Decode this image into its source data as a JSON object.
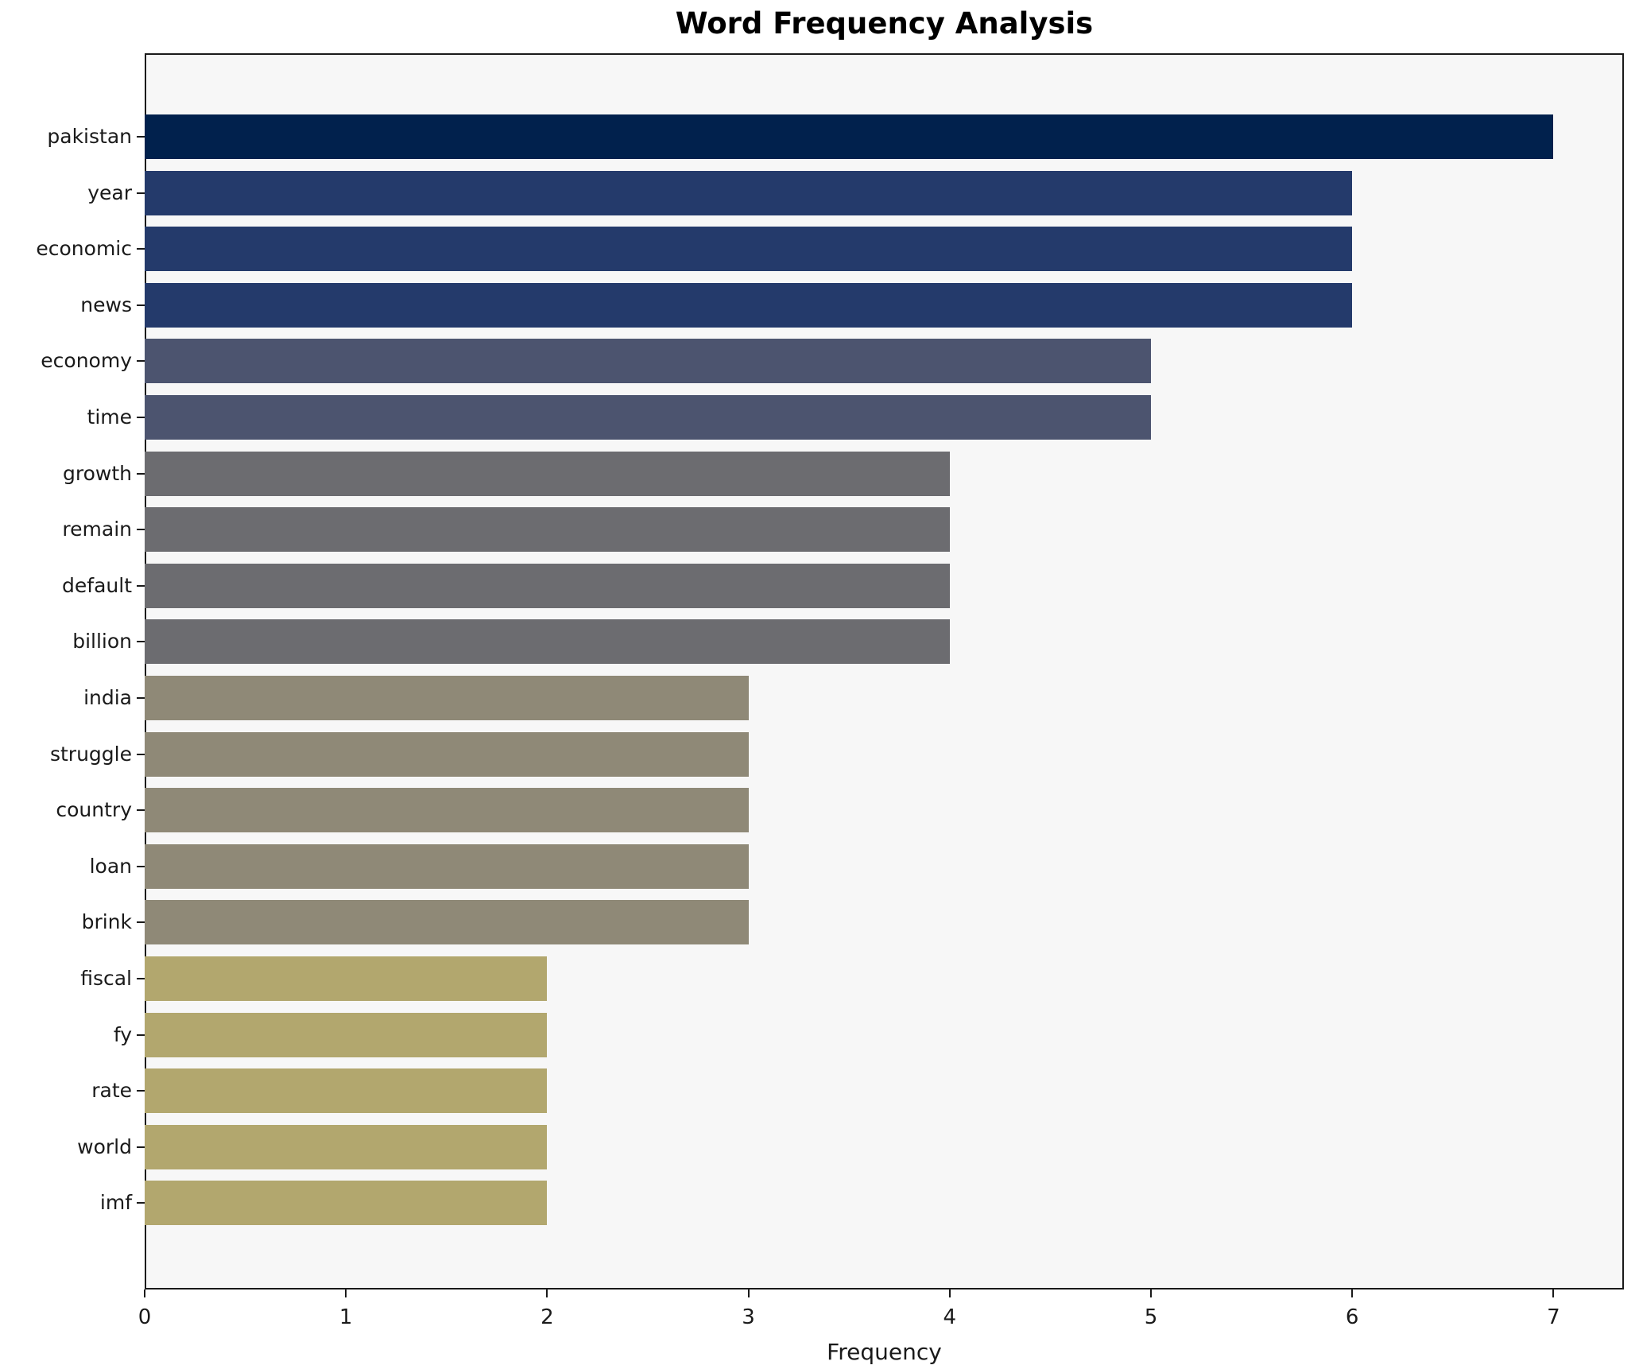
{
  "title": "Word Frequency Analysis",
  "xlabel": "Frequency",
  "colors": {
    "figure_bg": "#ffffff",
    "plot_bg": "#f7f7f7",
    "spine": "#1a1a1a",
    "text": "#1a1a1a"
  },
  "chart_data": {
    "type": "bar",
    "orientation": "horizontal",
    "title": "Word Frequency Analysis",
    "xlabel": "Frequency",
    "ylabel": "",
    "categories": [
      "pakistan",
      "year",
      "economic",
      "news",
      "economy",
      "time",
      "growth",
      "remain",
      "default",
      "billion",
      "india",
      "struggle",
      "country",
      "loan",
      "brink",
      "fiscal",
      "fy",
      "rate",
      "world",
      "imf"
    ],
    "values": [
      7,
      6,
      6,
      6,
      5,
      5,
      4,
      4,
      4,
      4,
      3,
      3,
      3,
      3,
      3,
      2,
      2,
      2,
      2,
      2
    ],
    "bar_colors": [
      "#01214D",
      "#243A6B",
      "#243A6B",
      "#243A6B",
      "#4C546F",
      "#4C546F",
      "#6C6C70",
      "#6C6C70",
      "#6C6C70",
      "#6C6C70",
      "#8F8977",
      "#8F8977",
      "#8F8977",
      "#8F8977",
      "#8F8977",
      "#B2A76E",
      "#B2A76E",
      "#B2A76E",
      "#B2A76E",
      "#B2A76E"
    ],
    "xlim": [
      0,
      7.35
    ],
    "xticks": [
      0,
      1,
      2,
      3,
      4,
      5,
      6,
      7
    ],
    "grid": false,
    "legend": null,
    "plot_bg": "#f7f7f7"
  }
}
